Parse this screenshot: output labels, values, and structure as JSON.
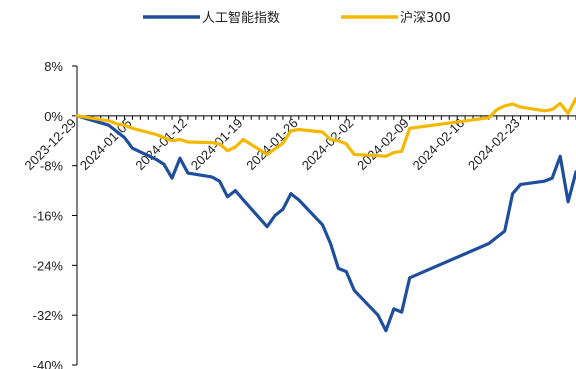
{
  "chart_data": {
    "type": "line",
    "title": "",
    "xlabel": "",
    "ylabel": "",
    "ylim": [
      -40,
      8
    ],
    "y_ticks": [
      "8%",
      "0%",
      "-8%",
      "-16%",
      "-24%",
      "-32%",
      "-40%"
    ],
    "y_tick_values": [
      8,
      0,
      -8,
      -16,
      -24,
      -32,
      -40
    ],
    "x_tick_labels": [
      "2023-12-29",
      "2024-01-05",
      "2024-01-12",
      "2024-01-19",
      "2024-01-26",
      "2024-02-02",
      "2024-02-09",
      "2024-02-16",
      "2024-02-23"
    ],
    "x_tick_values": [
      "2023-12-29",
      "2024-01-05",
      "2024-01-12",
      "2024-01-19",
      "2024-01-26",
      "2024-02-02",
      "2024-02-09",
      "2024-02-16",
      "2024-02-23"
    ],
    "xlim": [
      "2023-12-29",
      "2024-03-01"
    ],
    "legend_position": "top-center",
    "grid": false,
    "series": [
      {
        "name": "人工智能指数",
        "color": "#1f4e9c",
        "x": [
          "2023-12-29",
          "2024-01-02",
          "2024-01-03",
          "2024-01-04",
          "2024-01-05",
          "2024-01-08",
          "2024-01-09",
          "2024-01-10",
          "2024-01-11",
          "2024-01-12",
          "2024-01-15",
          "2024-01-16",
          "2024-01-17",
          "2024-01-18",
          "2024-01-19",
          "2024-01-22",
          "2024-01-23",
          "2024-01-24",
          "2024-01-25",
          "2024-01-26",
          "2024-01-29",
          "2024-01-30",
          "2024-01-31",
          "2024-02-01",
          "2024-02-02",
          "2024-02-05",
          "2024-02-06",
          "2024-02-07",
          "2024-02-08",
          "2024-02-09",
          "2024-02-19",
          "2024-02-20",
          "2024-02-21",
          "2024-02-22",
          "2024-02-23",
          "2024-02-26",
          "2024-02-27",
          "2024-02-28",
          "2024-02-29",
          "2024-03-01"
        ],
        "y": [
          0,
          -1.5,
          -2.5,
          -3.5,
          -5.2,
          -7.0,
          -7.8,
          -10.0,
          -6.8,
          -9.2,
          -9.8,
          -10.5,
          -13.0,
          -12.0,
          -13.5,
          -17.8,
          -16.0,
          -15.0,
          -12.5,
          -13.5,
          -17.5,
          -20.5,
          -24.5,
          -25.0,
          -28.0,
          -32.0,
          -34.5,
          -31.0,
          -31.5,
          -26.0,
          -20.5,
          -19.5,
          -18.5,
          -12.5,
          -11.0,
          -10.5,
          -10.0,
          -6.5,
          -13.8,
          -9.0
        ]
      },
      {
        "name": "沪深300",
        "color": "#f5b800",
        "x": [
          "2023-12-29",
          "2024-01-02",
          "2024-01-03",
          "2024-01-04",
          "2024-01-05",
          "2024-01-08",
          "2024-01-09",
          "2024-01-10",
          "2024-01-11",
          "2024-01-12",
          "2024-01-15",
          "2024-01-16",
          "2024-01-17",
          "2024-01-18",
          "2024-01-19",
          "2024-01-22",
          "2024-01-23",
          "2024-01-24",
          "2024-01-25",
          "2024-01-26",
          "2024-01-29",
          "2024-01-30",
          "2024-01-31",
          "2024-02-01",
          "2024-02-02",
          "2024-02-05",
          "2024-02-06",
          "2024-02-07",
          "2024-02-08",
          "2024-02-09",
          "2024-02-19",
          "2024-02-20",
          "2024-02-21",
          "2024-02-22",
          "2024-02-23",
          "2024-02-26",
          "2024-02-27",
          "2024-02-28",
          "2024-02-29",
          "2024-03-01"
        ],
        "y": [
          0,
          -0.8,
          -1.3,
          -1.5,
          -2.0,
          -3.0,
          -3.5,
          -4.0,
          -3.8,
          -4.2,
          -4.3,
          -4.5,
          -5.6,
          -5.0,
          -3.8,
          -6.2,
          -5.3,
          -4.4,
          -2.4,
          -2.2,
          -2.6,
          -3.8,
          -4.0,
          -4.5,
          -6.2,
          -6.4,
          -6.5,
          -5.9,
          -5.7,
          -2.0,
          -0.3,
          1.0,
          1.6,
          1.9,
          1.4,
          0.8,
          1.0,
          2.0,
          0.4,
          2.8
        ]
      }
    ]
  }
}
